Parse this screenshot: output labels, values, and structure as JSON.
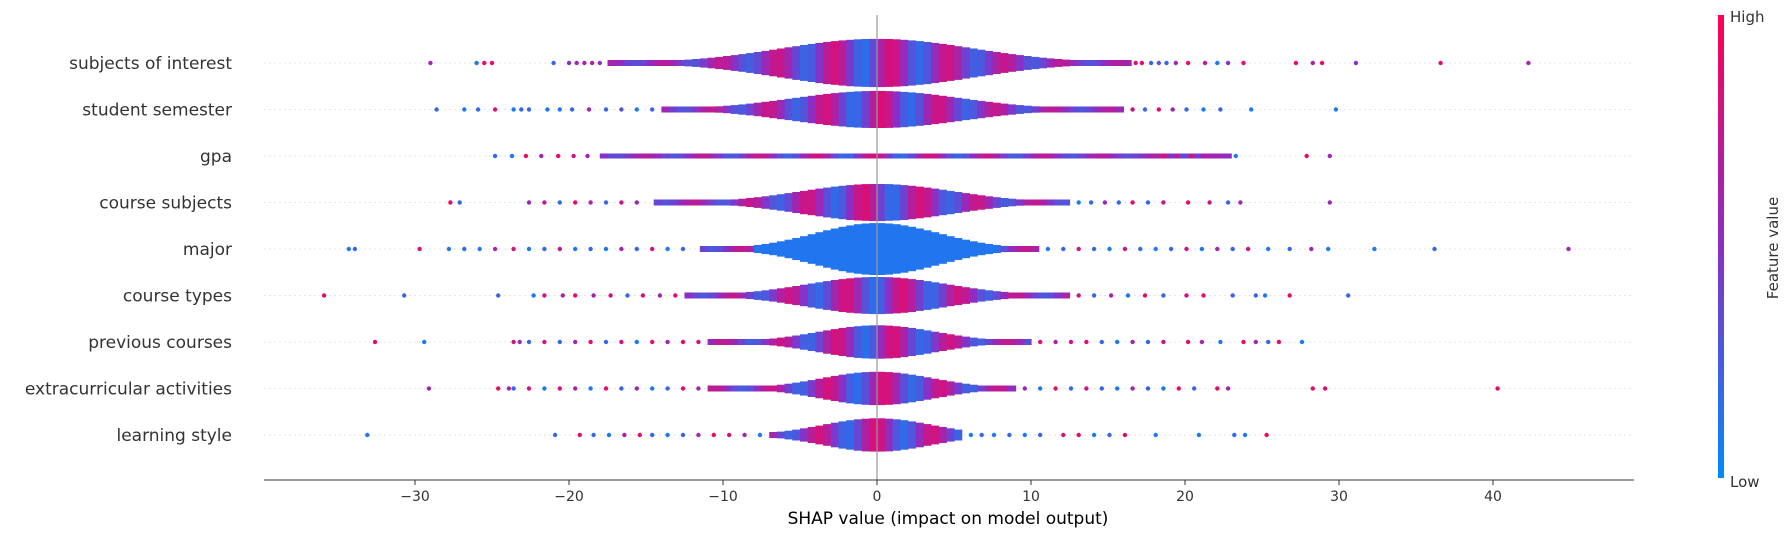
{
  "chart_data": {
    "type": "violin",
    "xlabel": "SHAP value (impact on model output)",
    "x_ticks": [
      -30,
      -20,
      -10,
      0,
      10,
      20,
      30,
      40
    ],
    "x_tick_labels": [
      "−30",
      "−20",
      "−10",
      "0",
      "10",
      "20",
      "30",
      "40"
    ],
    "xlim": [
      -39.5,
      49
    ],
    "colorbar": {
      "label": "Feature value",
      "high_label": "High",
      "low_label": "Low",
      "low_color": "#008bfb",
      "high_color": "#ff0052"
    },
    "features": [
      {
        "name": "subjects of interest",
        "violin_range": [
          -17.5,
          16.5
        ],
        "max_halfwidth": 0.65,
        "outliers": [
          [
            -29,
            0.6
          ],
          [
            -26,
            0.1
          ],
          [
            -25.5,
            0.9
          ],
          [
            -25,
            0.9
          ],
          [
            -21,
            0.2
          ],
          [
            -20,
            0.5
          ],
          [
            -19.5,
            0.6
          ],
          [
            -19,
            0.6
          ],
          [
            -18.5,
            0.7
          ],
          [
            -18,
            0.5
          ],
          [
            16.8,
            0.8
          ],
          [
            17.2,
            0.9
          ],
          [
            17.8,
            0.2
          ],
          [
            18.3,
            0.3
          ],
          [
            18.8,
            0.2
          ],
          [
            19.4,
            0.6
          ],
          [
            20.2,
            0.9
          ],
          [
            21.3,
            0.8
          ],
          [
            22.1,
            0.1
          ],
          [
            22.8,
            0.5
          ],
          [
            23.8,
            0.9
          ],
          [
            27.2,
            0.9
          ],
          [
            28.3,
            0.6
          ],
          [
            28.9,
            0.9
          ],
          [
            31.1,
            0.5
          ],
          [
            36.6,
            0.9
          ],
          [
            42.3,
            0.6
          ]
        ]
      },
      {
        "name": "student semester",
        "violin_range": [
          -14,
          16
        ],
        "max_halfwidth": 0.5,
        "outliers": [
          [
            -28.6,
            0.2
          ],
          [
            -26.8,
            0.1
          ],
          [
            -25.9,
            0.2
          ],
          [
            -24.8,
            0.8
          ],
          [
            -23.6,
            0.1
          ],
          [
            -23.1,
            0.2
          ],
          [
            -22.6,
            0.2
          ],
          [
            -21.4,
            0.1
          ],
          [
            -20.6,
            0.1
          ],
          [
            -19.8,
            0.2
          ],
          [
            -18.7,
            0.6
          ],
          [
            -17.6,
            0.2
          ],
          [
            -16.6,
            0.3
          ],
          [
            -15.6,
            0.1
          ],
          [
            -14.6,
            0.2
          ],
          [
            16.6,
            0.8
          ],
          [
            17.4,
            0.2
          ],
          [
            18.3,
            0.9
          ],
          [
            19.2,
            0.6
          ],
          [
            20.1,
            0.2
          ],
          [
            21.2,
            0.1
          ],
          [
            22.3,
            0.2
          ],
          [
            24.3,
            0.1
          ],
          [
            29.8,
            0.1
          ]
        ]
      },
      {
        "name": "gpa",
        "violin_range": [
          -18,
          23
        ],
        "max_halfwidth": 0.04,
        "outliers": [
          [
            -24.8,
            0.2
          ],
          [
            -23.7,
            0.1
          ],
          [
            -22.8,
            0.9
          ],
          [
            -21.8,
            0.6
          ],
          [
            -20.7,
            0.9
          ],
          [
            -19.7,
            0.8
          ],
          [
            -18.8,
            0.6
          ],
          [
            18.6,
            0.9
          ],
          [
            19.5,
            0.8
          ],
          [
            20.4,
            0.9
          ],
          [
            21.3,
            0.7
          ],
          [
            22.2,
            0.6
          ],
          [
            23.3,
            0.1
          ],
          [
            27.9,
            0.9
          ],
          [
            29.4,
            0.6
          ]
        ]
      },
      {
        "name": "course subjects",
        "violin_range": [
          -14.5,
          12.5
        ],
        "max_halfwidth": 0.5,
        "outliers": [
          [
            -27.7,
            0.9
          ],
          [
            -27.1,
            0.2
          ],
          [
            -22.6,
            0.6
          ],
          [
            -21.6,
            0.8
          ],
          [
            -20.6,
            0.2
          ],
          [
            -19.6,
            0.9
          ],
          [
            -18.6,
            0.6
          ],
          [
            -17.6,
            0.2
          ],
          [
            -16.6,
            0.8
          ],
          [
            -15.6,
            0.6
          ],
          [
            13.1,
            0.1
          ],
          [
            13.9,
            0.2
          ],
          [
            14.8,
            0.6
          ],
          [
            15.7,
            0.2
          ],
          [
            16.6,
            0.9
          ],
          [
            17.6,
            0.2
          ],
          [
            18.6,
            0.8
          ],
          [
            20.2,
            0.9
          ],
          [
            21.6,
            0.8
          ],
          [
            22.8,
            0.2
          ],
          [
            23.6,
            0.6
          ],
          [
            29.4,
            0.6
          ]
        ]
      },
      {
        "name": "major",
        "violin_range": [
          -11.5,
          10.5
        ],
        "max_halfwidth": 0.7,
        "outliers": [
          [
            -34.3,
            0.1
          ],
          [
            -33.9,
            0.2
          ],
          [
            -29.7,
            0.8
          ],
          [
            -27.8,
            0.1
          ],
          [
            -26.8,
            0.2
          ],
          [
            -25.8,
            0.1
          ],
          [
            -24.8,
            0.6
          ],
          [
            -23.6,
            0.8
          ],
          [
            -22.6,
            0.1
          ],
          [
            -21.6,
            0.2
          ],
          [
            -20.6,
            0.8
          ],
          [
            -19.6,
            0.1
          ],
          [
            -18.6,
            0.2
          ],
          [
            -17.6,
            0.1
          ],
          [
            -16.6,
            0.6
          ],
          [
            -15.6,
            0.2
          ],
          [
            -14.6,
            0.8
          ],
          [
            -13.6,
            0.1
          ],
          [
            -12.6,
            0.2
          ],
          [
            11.1,
            0.1
          ],
          [
            12.1,
            0.2
          ],
          [
            13.1,
            0.8
          ],
          [
            14.1,
            0.2
          ],
          [
            15.1,
            0.1
          ],
          [
            16.1,
            0.8
          ],
          [
            17.1,
            0.2
          ],
          [
            18.1,
            0.1
          ],
          [
            19.1,
            0.2
          ],
          [
            20.1,
            0.8
          ],
          [
            21.1,
            0.1
          ],
          [
            22.1,
            0.6
          ],
          [
            23.1,
            0.2
          ],
          [
            24.1,
            0.8
          ],
          [
            25.4,
            0.1
          ],
          [
            26.8,
            0.2
          ],
          [
            28.2,
            0.6
          ],
          [
            29.3,
            0.1
          ],
          [
            32.3,
            0.1
          ],
          [
            36.2,
            0.2
          ],
          [
            44.9,
            0.6
          ]
        ]
      },
      {
        "name": "course types",
        "violin_range": [
          -12.5,
          12.5
        ],
        "max_halfwidth": 0.5,
        "outliers": [
          [
            -35.9,
            0.9
          ],
          [
            -30.7,
            0.2
          ],
          [
            -24.6,
            0.2
          ],
          [
            -22.3,
            0.1
          ],
          [
            -21.6,
            0.8
          ],
          [
            -20.4,
            0.6
          ],
          [
            -19.6,
            0.9
          ],
          [
            -18.4,
            0.6
          ],
          [
            -17.3,
            0.8
          ],
          [
            -16.2,
            0.2
          ],
          [
            -15.2,
            0.8
          ],
          [
            -14.1,
            0.6
          ],
          [
            -13.1,
            0.9
          ],
          [
            13.1,
            0.8
          ],
          [
            14.1,
            0.2
          ],
          [
            15.2,
            0.6
          ],
          [
            16.3,
            0.1
          ],
          [
            17.4,
            0.9
          ],
          [
            18.6,
            0.2
          ],
          [
            20.1,
            0.8
          ],
          [
            21.2,
            0.9
          ],
          [
            23.1,
            0.2
          ],
          [
            24.6,
            0.2
          ],
          [
            25.2,
            0.1
          ],
          [
            26.8,
            0.9
          ],
          [
            30.6,
            0.2
          ]
        ]
      },
      {
        "name": "previous courses",
        "violin_range": [
          -11,
          10
        ],
        "max_halfwidth": 0.45,
        "outliers": [
          [
            -32.6,
            0.9
          ],
          [
            -29.4,
            0.1
          ],
          [
            -23.6,
            0.8
          ],
          [
            -23.2,
            0.6
          ],
          [
            -22.6,
            0.2
          ],
          [
            -21.6,
            0.8
          ],
          [
            -20.6,
            0.2
          ],
          [
            -19.6,
            0.6
          ],
          [
            -18.6,
            0.9
          ],
          [
            -17.6,
            0.2
          ],
          [
            -16.6,
            0.8
          ],
          [
            -15.6,
            0.1
          ],
          [
            -14.6,
            0.9
          ],
          [
            -13.6,
            0.6
          ],
          [
            -12.6,
            0.9
          ],
          [
            -11.6,
            0.8
          ],
          [
            10.6,
            0.9
          ],
          [
            11.6,
            0.6
          ],
          [
            12.6,
            0.8
          ],
          [
            13.6,
            0.9
          ],
          [
            14.6,
            0.2
          ],
          [
            15.6,
            0.1
          ],
          [
            16.6,
            0.6
          ],
          [
            17.6,
            0.2
          ],
          [
            18.6,
            0.8
          ],
          [
            20.2,
            0.9
          ],
          [
            21.1,
            0.6
          ],
          [
            22.3,
            0.1
          ],
          [
            23.8,
            0.9
          ],
          [
            24.6,
            0.6
          ],
          [
            25.4,
            0.2
          ],
          [
            26.1,
            0.9
          ],
          [
            27.6,
            0.1
          ]
        ]
      },
      {
        "name": "extracurricular activities",
        "violin_range": [
          -11,
          9
        ],
        "max_halfwidth": 0.45,
        "outliers": [
          [
            -29.1,
            0.6
          ],
          [
            -24.6,
            0.9
          ],
          [
            -23.9,
            0.6
          ],
          [
            -23.6,
            0.2
          ],
          [
            -22.6,
            0.8
          ],
          [
            -21.6,
            0.1
          ],
          [
            -20.6,
            0.9
          ],
          [
            -19.6,
            0.6
          ],
          [
            -18.6,
            0.1
          ],
          [
            -17.6,
            0.9
          ],
          [
            -16.6,
            0.2
          ],
          [
            -15.6,
            0.6
          ],
          [
            -14.6,
            0.1
          ],
          [
            -13.6,
            0.2
          ],
          [
            -12.6,
            0.9
          ],
          [
            -11.6,
            0.6
          ],
          [
            9.6,
            0.6
          ],
          [
            10.6,
            0.1
          ],
          [
            11.6,
            0.9
          ],
          [
            12.6,
            0.2
          ],
          [
            13.6,
            0.8
          ],
          [
            14.6,
            0.2
          ],
          [
            15.6,
            0.1
          ],
          [
            16.6,
            0.6
          ],
          [
            17.6,
            0.2
          ],
          [
            18.6,
            0.1
          ],
          [
            19.6,
            0.9
          ],
          [
            20.6,
            0.2
          ],
          [
            22.1,
            0.9
          ],
          [
            22.8,
            0.6
          ],
          [
            28.3,
            0.9
          ],
          [
            29.1,
            0.9
          ],
          [
            40.3,
            0.9
          ]
        ]
      },
      {
        "name": "learning style",
        "violin_range": [
          -7,
          5.5
        ],
        "max_halfwidth": 0.45,
        "outliers": [
          [
            -33.1,
            0.1
          ],
          [
            -20.9,
            0.2
          ],
          [
            -19.3,
            0.9
          ],
          [
            -18.4,
            0.2
          ],
          [
            -17.4,
            0.1
          ],
          [
            -16.4,
            0.6
          ],
          [
            -15.4,
            0.9
          ],
          [
            -14.6,
            0.2
          ],
          [
            -13.6,
            0.1
          ],
          [
            -12.6,
            0.2
          ],
          [
            -11.6,
            0.6
          ],
          [
            -10.6,
            0.9
          ],
          [
            -9.6,
            0.8
          ],
          [
            -8.6,
            0.6
          ],
          [
            -7.6,
            0.1
          ],
          [
            6.1,
            0.1
          ],
          [
            6.8,
            0.2
          ],
          [
            7.6,
            0.1
          ],
          [
            8.6,
            0.2
          ],
          [
            9.6,
            0.1
          ],
          [
            10.6,
            0.2
          ],
          [
            12.1,
            0.8
          ],
          [
            13.1,
            0.9
          ],
          [
            14.1,
            0.1
          ],
          [
            15.1,
            0.2
          ],
          [
            16.1,
            0.9
          ],
          [
            18.1,
            0.1
          ],
          [
            20.9,
            0.1
          ],
          [
            23.2,
            0.2
          ],
          [
            23.9,
            0.1
          ],
          [
            25.3,
            0.9
          ]
        ]
      }
    ]
  }
}
